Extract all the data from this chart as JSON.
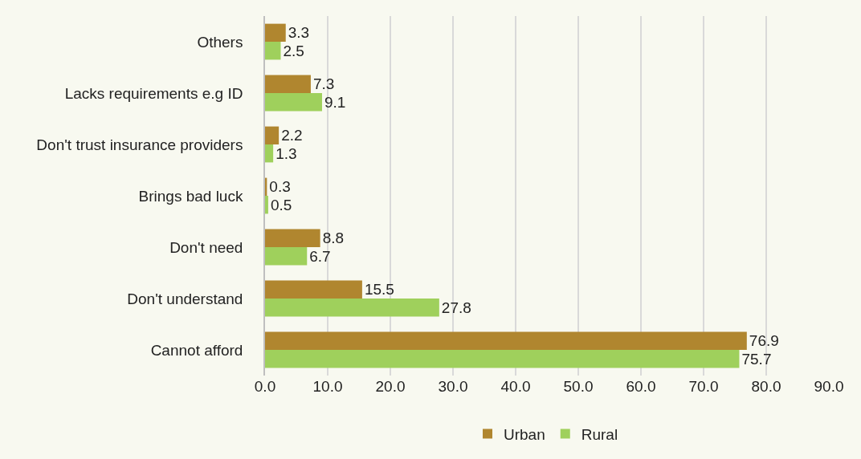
{
  "chart_data": {
    "type": "bar",
    "orientation": "horizontal",
    "categories": [
      "Others",
      "Lacks requirements e.g ID",
      "Don't trust insurance providers",
      "Brings bad luck",
      "Don't need",
      "Don't understand",
      "Cannot afford"
    ],
    "series": [
      {
        "name": "Urban",
        "color": "#b0862f",
        "values": [
          3.3,
          7.3,
          2.2,
          0.3,
          8.8,
          15.5,
          76.9
        ]
      },
      {
        "name": "Rural",
        "color": "#9fd05c",
        "values": [
          2.5,
          9.1,
          1.3,
          0.5,
          6.7,
          27.8,
          75.7
        ]
      }
    ],
    "xlim": [
      0,
      90
    ],
    "xticks": [
      {
        "value": 0,
        "label": "0.0"
      },
      {
        "value": 10,
        "label": "10.0"
      },
      {
        "value": 20,
        "label": "20.0"
      },
      {
        "value": 30,
        "label": "30.0"
      },
      {
        "value": 40,
        "label": "40.0"
      },
      {
        "value": 50,
        "label": "50.0"
      },
      {
        "value": 60,
        "label": "60.0"
      },
      {
        "value": 70,
        "label": "70.0"
      },
      {
        "value": 80,
        "label": "80.0"
      },
      {
        "value": 90,
        "label": "90.0"
      }
    ],
    "grid": "x",
    "legend": "bottom",
    "data_labels": true
  }
}
